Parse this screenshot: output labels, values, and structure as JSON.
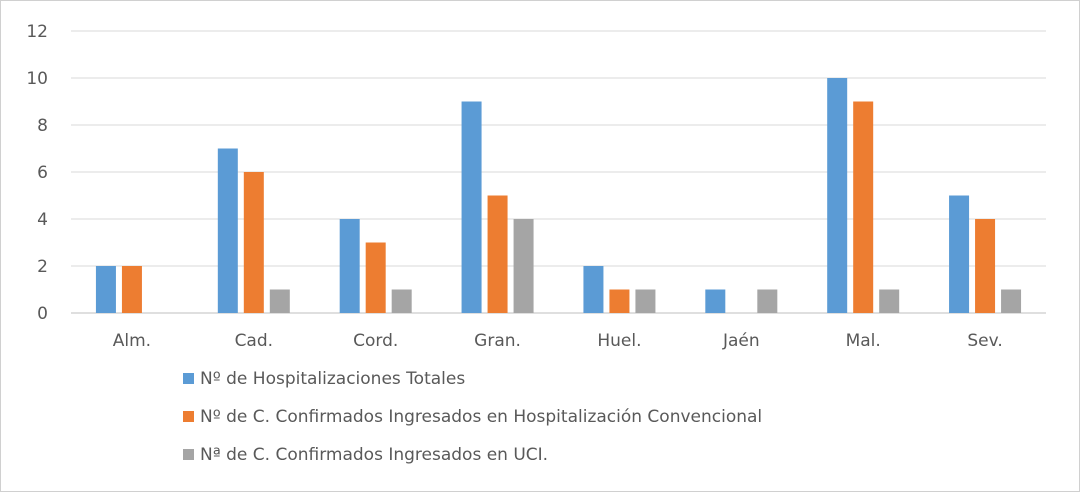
{
  "chart_data": {
    "type": "bar",
    "title": "",
    "xlabel": "",
    "ylabel": "",
    "ylim": [
      0,
      12
    ],
    "yticks": [
      0,
      2,
      4,
      6,
      8,
      10,
      12
    ],
    "grid": true,
    "legend_position": "bottom",
    "categories": [
      "Alm.",
      "Cad.",
      "Cord.",
      "Gran.",
      "Huel.",
      "Jaén",
      "Mal.",
      "Sev."
    ],
    "series": [
      {
        "name": "Nº de Hospitalizaciones Totales",
        "color": "#5b9bd5",
        "values": [
          2,
          7,
          4,
          9,
          2,
          1,
          10,
          5
        ]
      },
      {
        "name": "Nº de C. Confirmados Ingresados en Hospitalización Convencional",
        "color": "#ed7d31",
        "values": [
          2,
          6,
          3,
          5,
          1,
          0,
          9,
          4
        ]
      },
      {
        "name": "Nª de C. Confirmados Ingresados en UCI.",
        "color": "#a5a5a5",
        "values": [
          0,
          1,
          1,
          4,
          1,
          1,
          1,
          1
        ]
      }
    ]
  }
}
